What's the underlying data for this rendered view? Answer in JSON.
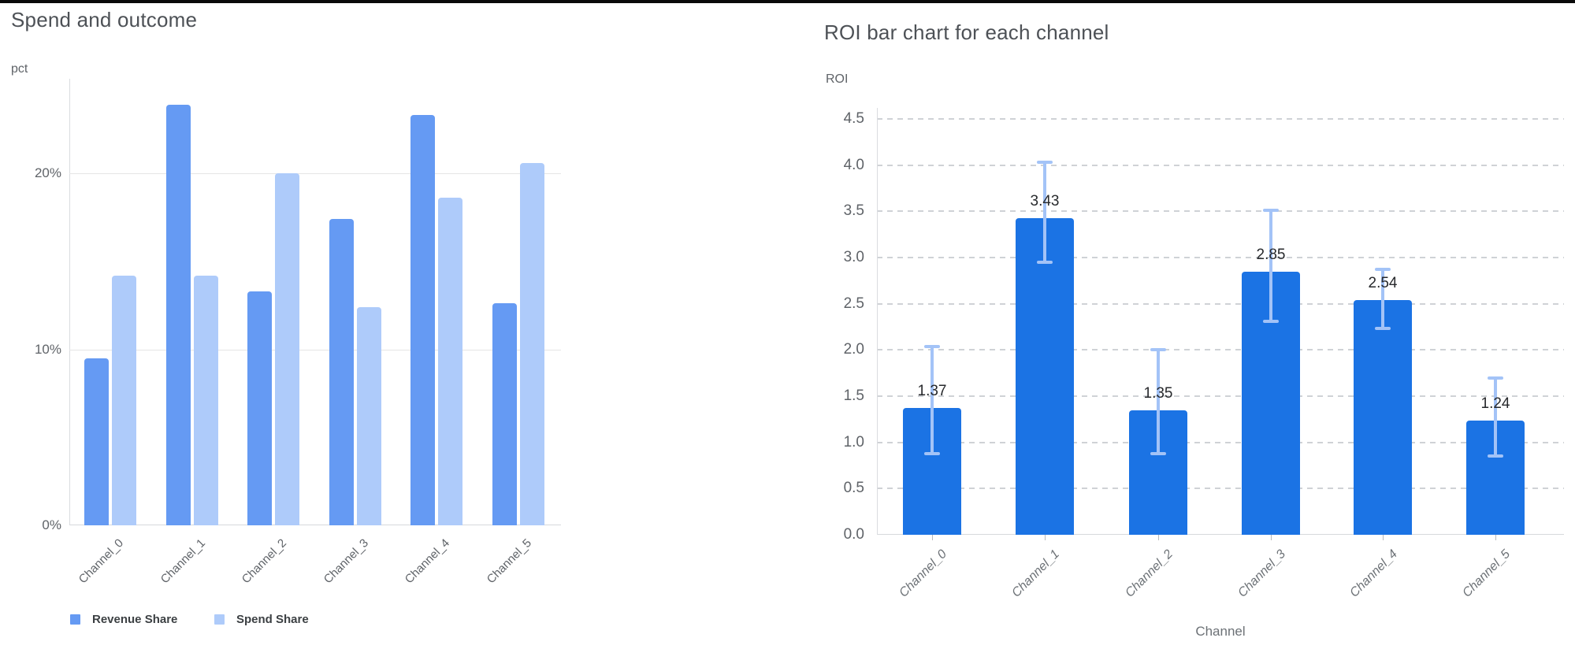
{
  "left_chart": {
    "title": "Spend and outcome",
    "y_axis_unit": "pct",
    "y_ticks": [
      {
        "value": 20,
        "label": "20%"
      },
      {
        "value": 10,
        "label": "10%"
      },
      {
        "value": 0,
        "label": "0%"
      }
    ],
    "legend": {
      "items": [
        {
          "label": "Revenue Share",
          "color": "#659af3"
        },
        {
          "label": "Spend Share",
          "color": "#aecbfa"
        }
      ]
    }
  },
  "right_chart": {
    "title": "ROI bar chart for each channel",
    "y_axis_unit": "ROI",
    "x_axis_title": "Channel",
    "y_tick_labels": [
      "4.5",
      "4.0",
      "3.5",
      "3.0",
      "2.5",
      "2.0",
      "1.5",
      "1.0",
      "0.5",
      "0.0"
    ],
    "bar_color": "#1b73e4",
    "error_bar_color": "#a3c3f7"
  },
  "chart_data": [
    {
      "id": "spend-and-outcome",
      "type": "bar",
      "title": "Spend and outcome",
      "xlabel": "",
      "ylabel": "pct",
      "categories": [
        "Channel_0",
        "Channel_1",
        "Channel_2",
        "Channel_3",
        "Channel_4",
        "Channel_5"
      ],
      "series": [
        {
          "name": "Revenue Share",
          "color": "#659af3",
          "values": [
            9.5,
            23.9,
            13.3,
            17.4,
            23.3,
            12.6
          ]
        },
        {
          "name": "Spend Share",
          "color": "#aecbfa",
          "values": [
            14.2,
            14.2,
            20.0,
            12.4,
            18.6,
            20.6
          ]
        }
      ],
      "value_unit": "percent",
      "ylim": [
        0,
        25.4
      ],
      "yticks": [
        0,
        10,
        20
      ],
      "grid": "solid-horizontal",
      "legend_position": "bottom"
    },
    {
      "id": "roi-by-channel",
      "type": "bar",
      "title": "ROI bar chart for each channel",
      "xlabel": "Channel",
      "ylabel": "ROI",
      "categories": [
        "Channel_0",
        "Channel_1",
        "Channel_2",
        "Channel_3",
        "Channel_4",
        "Channel_5"
      ],
      "values": [
        1.37,
        3.43,
        1.35,
        2.85,
        2.54,
        1.24
      ],
      "data_labels": [
        "1.37",
        "3.43",
        "1.35",
        "2.85",
        "2.54",
        "1.24"
      ],
      "error_bars": {
        "low": [
          0.88,
          2.95,
          0.88,
          2.31,
          2.23,
          0.85
        ],
        "high": [
          2.04,
          4.03,
          2.0,
          3.51,
          2.87,
          1.7
        ]
      },
      "ylim": [
        0,
        4.5
      ],
      "yticks": [
        0.0,
        0.5,
        1.0,
        1.5,
        2.0,
        2.5,
        3.0,
        3.5,
        4.0,
        4.5
      ],
      "grid": "dashed-horizontal",
      "legend_position": "none"
    }
  ]
}
